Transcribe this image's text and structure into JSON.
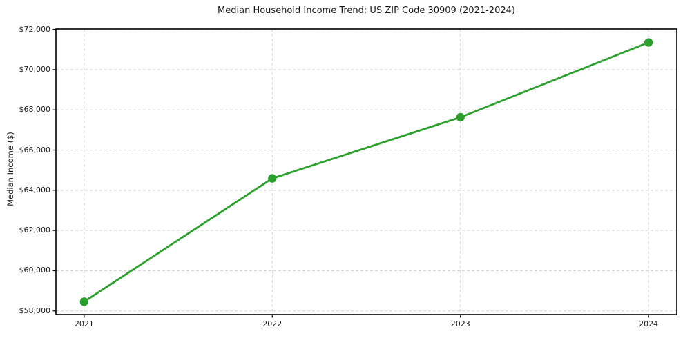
{
  "chart_data": {
    "type": "line",
    "title": "Median Household Income Trend: US ZIP Code 30909 (2021-2024)",
    "ylabel": "Median Income ($)",
    "xlabel": "",
    "x": [
      2021,
      2022,
      2023,
      2024
    ],
    "xtick_labels": [
      "2021",
      "2022",
      "2023",
      "2024"
    ],
    "series": [
      {
        "name": "Median Household Income",
        "values": [
          58460,
          64590,
          67630,
          71350
        ]
      }
    ],
    "yticks": [
      58000,
      60000,
      62000,
      64000,
      66000,
      68000,
      70000,
      72000
    ],
    "ytick_labels": [
      "$58,000",
      "$60,000",
      "$62,000",
      "$64,000",
      "$66,000",
      "$68,000",
      "$70,000",
      "$72,000"
    ],
    "xlim": [
      2020.85,
      2024.15
    ],
    "ylim": [
      57820,
      72020
    ],
    "grid": true,
    "grid_style": "dashed",
    "legend": "none",
    "colors": {
      "line": "#2ca02c",
      "marker": "#2ca02c",
      "grid": "#d4d4d4",
      "spine": "#000000",
      "text": "#1a1a1a",
      "background": "#ffffff"
    }
  }
}
